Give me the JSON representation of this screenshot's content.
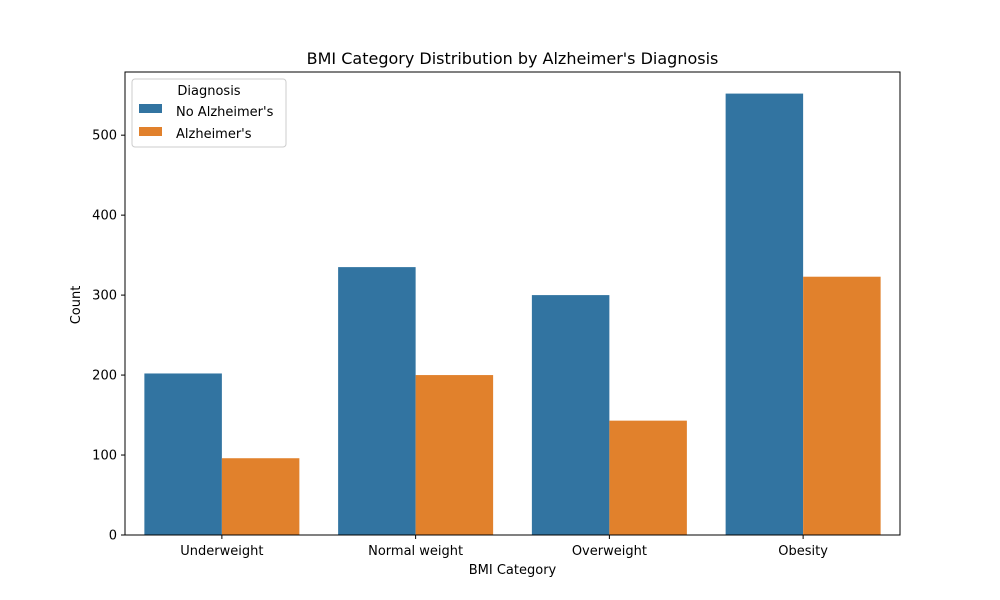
{
  "chart_data": {
    "type": "bar",
    "title": "BMI Category Distribution by Alzheimer's Diagnosis",
    "xlabel": "BMI Category",
    "ylabel": "Count",
    "categories": [
      "Underweight",
      "Normal weight",
      "Overweight",
      "Obesity"
    ],
    "series": [
      {
        "name": "No Alzheimer's",
        "values": [
          202,
          335,
          300,
          552
        ],
        "color": "#3274a1"
      },
      {
        "name": "Alzheimer's",
        "values": [
          96,
          200,
          143,
          323
        ],
        "color": "#e1812c"
      }
    ],
    "ylim": [
      0,
      579
    ],
    "yticks": [
      0,
      100,
      200,
      300,
      400,
      500
    ],
    "grid": false,
    "legend": {
      "title": "Diagnosis",
      "placement": "top-left"
    }
  }
}
